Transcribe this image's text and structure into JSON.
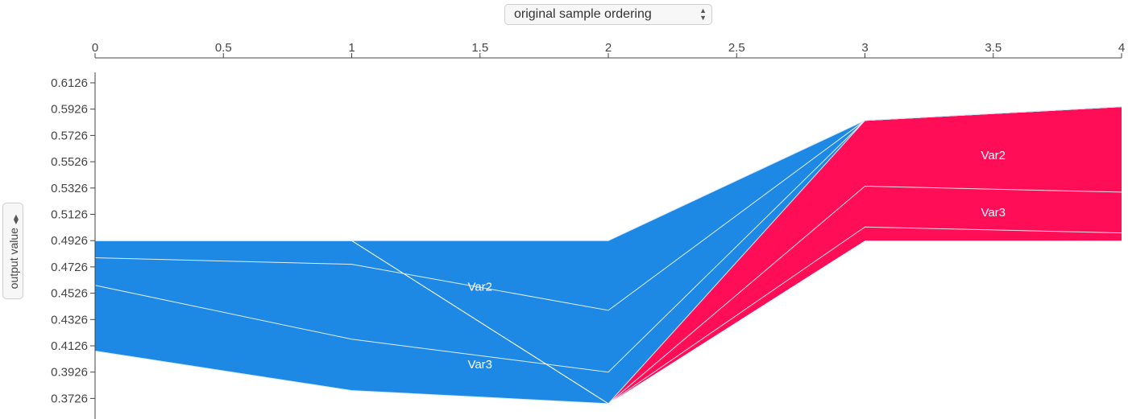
{
  "ordering_select": {
    "label": "original sample ordering",
    "arrows": "▲▼"
  },
  "yaxis_select": {
    "label": "output value",
    "arrows": "◀▶"
  },
  "colors": {
    "negative": "#1e88e5",
    "positive": "#ff0d57",
    "axis": "#444444",
    "separator": "#ffffff"
  },
  "chart_data": {
    "type": "area",
    "base_value": 0.3726,
    "x": [
      0,
      1,
      2,
      3,
      4
    ],
    "x_ticks": [
      "0",
      "0.5",
      "1",
      "1.5",
      "2",
      "2.5",
      "3",
      "3.5",
      "4"
    ],
    "xlim": [
      0,
      4
    ],
    "y_ticks": [
      "0.6126",
      "0.5926",
      "0.5726",
      "0.5526",
      "0.5326",
      "0.5126",
      "0.4926",
      "0.4726",
      "0.4526",
      "0.4326",
      "0.4126",
      "0.3926",
      "0.3726"
    ],
    "ylim": [
      0.3626,
      0.6226
    ],
    "ylabel": "output value",
    "output_value": [
      0.4926,
      0.4926,
      0.4926,
      0.584,
      0.5945
    ],
    "negative": {
      "color": "#1e88e5",
      "boundaries": [
        [
          0.4926,
          0.4926,
          0.4926,
          0.584,
          0.5945
        ],
        [
          0.4796,
          0.4746,
          0.4396,
          0.584,
          0.5945
        ],
        [
          0.4586,
          0.4176,
          0.3926,
          0.584,
          0.5945
        ],
        [
          0.4086,
          0.3786,
          0.3686,
          0.584,
          0.5945
        ]
      ],
      "labels": [
        {
          "text": "Var2",
          "x": 1.5,
          "y": 0.4546
        },
        {
          "text": "Var3",
          "x": 1.5,
          "y": 0.3956
        }
      ]
    },
    "positive": {
      "color": "#ff0d57",
      "boundaries": [
        [
          0.4926,
          0.4926,
          0.3686,
          0.584,
          0.5945
        ],
        [
          0.4926,
          0.4926,
          0.3686,
          0.534,
          0.5295
        ],
        [
          0.4926,
          0.4926,
          0.3686,
          0.503,
          0.4985
        ],
        [
          0.4926,
          0.4926,
          0.3686,
          0.4926,
          0.4926
        ]
      ],
      "labels": [
        {
          "text": "Var2",
          "x": 3.5,
          "y": 0.5546
        },
        {
          "text": "Var3",
          "x": 3.5,
          "y": 0.5111
        }
      ]
    }
  }
}
